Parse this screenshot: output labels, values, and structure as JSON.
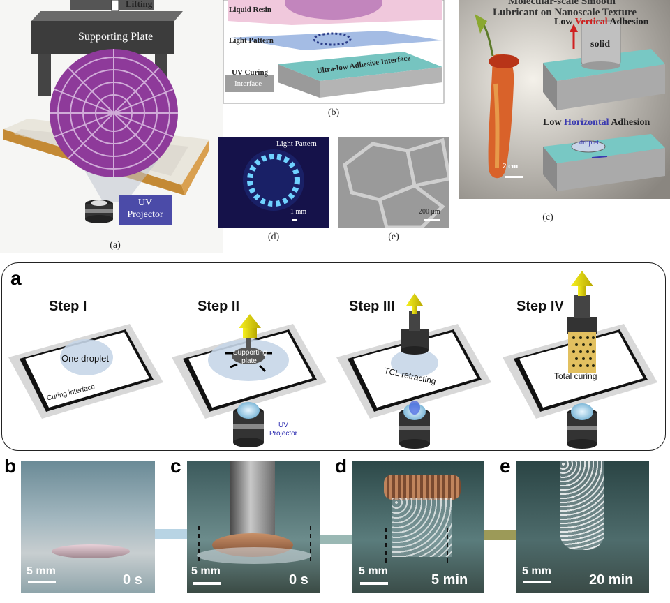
{
  "top": {
    "a": {
      "lifting": "Lifting",
      "supporting_plate": "Supporting Plate",
      "uv_projector": "UV\nProjector",
      "caption": "(a)"
    },
    "b": {
      "liquid_resin": "Liquid Resin",
      "light_pattern": "Light Pattern",
      "uv_curing": "UV Curing",
      "interface": "Interface",
      "ultra_low": "Ultra-low Adhesive Interface",
      "caption": "(b)"
    },
    "c": {
      "title1": "Molecular-scale Smooth",
      "title2": "Lubricant on Nanoscale Texture",
      "low": "Low ",
      "vertical": "Vertical",
      "adhesion": " Adhesion",
      "solid": "solid",
      "horizontal": "Horizontal",
      "droplet": "droplet",
      "scale": "2 cm",
      "caption": "(c)"
    },
    "d": {
      "light_pattern": "Light Pattern",
      "scale": "1 mm",
      "caption": "(d)"
    },
    "e": {
      "scale": "200 μm",
      "caption": "(e)"
    }
  },
  "steps": {
    "letter": "a",
    "s1": {
      "title": "Step I",
      "droplet": "One droplet",
      "interface": "Curing interface"
    },
    "s2": {
      "title": "Step II",
      "plate1": "Supporting",
      "plate2": "plate",
      "uv1": "UV",
      "uv2": "Projector"
    },
    "s3": {
      "title": "Step III",
      "tcl": "TCL retracting"
    },
    "s4": {
      "title": "Step IV",
      "curing": "Total curing"
    }
  },
  "photos": [
    {
      "letter": "b",
      "scale": "5 mm",
      "time": "0 s"
    },
    {
      "letter": "c",
      "scale": "5 mm",
      "time": "0 s"
    },
    {
      "letter": "d",
      "scale": "5 mm",
      "time": "5 min"
    },
    {
      "letter": "e",
      "scale": "5 mm",
      "time": "20 min"
    }
  ],
  "colors": {
    "magenta": "#8e3a9a",
    "uv_box": "#4b4ba8",
    "yellow_arrow": "#e8e000",
    "teal": "#76c4c0",
    "red": "#d02020",
    "blue_word": "#3a3ab0"
  }
}
